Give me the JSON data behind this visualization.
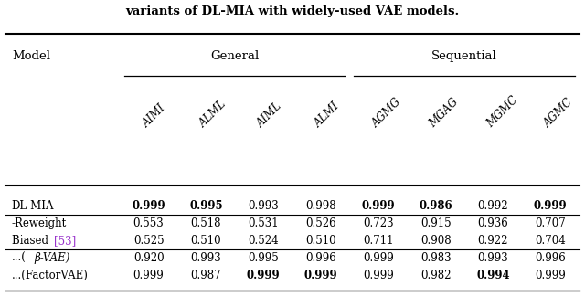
{
  "title": "variants of DL-MIA with widely-used VAE models.",
  "col_groups": [
    {
      "label": "General",
      "cols": [
        0,
        1,
        2,
        3
      ]
    },
    {
      "label": "Sequential",
      "cols": [
        4,
        5,
        6,
        7
      ]
    }
  ],
  "col_headers": [
    "AIMI",
    "ALML",
    "AIML",
    "ALMI",
    "AGMG",
    "MGAG",
    "MGMC",
    "AGMC"
  ],
  "row_label_col": "Model",
  "rows": [
    {
      "label": "DL-MIA",
      "values": [
        "0.999",
        "0.995",
        "0.993",
        "0.998",
        "0.999",
        "0.986",
        "0.992",
        "0.999"
      ],
      "bold": [
        true,
        true,
        false,
        false,
        true,
        true,
        false,
        true
      ],
      "separator_after": true
    },
    {
      "label": "-Reweight",
      "values": [
        "0.553",
        "0.518",
        "0.531",
        "0.526",
        "0.723",
        "0.915",
        "0.936",
        "0.707"
      ],
      "bold": [
        false,
        false,
        false,
        false,
        false,
        false,
        false,
        false
      ],
      "separator_after": false
    },
    {
      "label": "Biased [53]",
      "values": [
        "0.525",
        "0.510",
        "0.524",
        "0.510",
        "0.711",
        "0.908",
        "0.922",
        "0.704"
      ],
      "bold": [
        false,
        false,
        false,
        false,
        false,
        false,
        false,
        false
      ],
      "separator_after": true
    },
    {
      "label": "...(β-VAE)",
      "values": [
        "0.920",
        "0.993",
        "0.995",
        "0.996",
        "0.999",
        "0.983",
        "0.993",
        "0.996"
      ],
      "bold": [
        false,
        false,
        false,
        false,
        false,
        false,
        false,
        false
      ],
      "separator_after": false
    },
    {
      "label": "...(FactorVAE)",
      "values": [
        "0.999",
        "0.987",
        "0.999",
        "0.999",
        "0.999",
        "0.982",
        "0.994",
        "0.999"
      ],
      "bold": [
        false,
        false,
        true,
        true,
        false,
        false,
        true,
        false
      ],
      "separator_after": false
    }
  ],
  "background_color": "#ffffff",
  "font_family": "serif",
  "font_size": 8.5,
  "header_font_size": 9.5,
  "ref_color": "#9933CC"
}
